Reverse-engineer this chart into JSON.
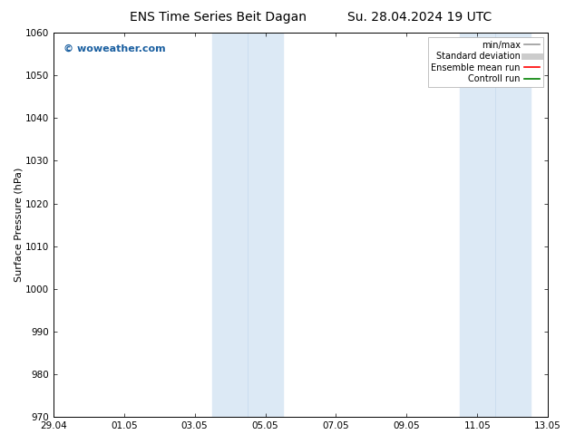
{
  "title_left": "ENS Time Series Beit Dagan",
  "title_right": "Su. 28.04.2024 19 UTC",
  "ylabel": "Surface Pressure (hPa)",
  "ylim": [
    970,
    1060
  ],
  "yticks": [
    970,
    980,
    990,
    1000,
    1010,
    1020,
    1030,
    1040,
    1050,
    1060
  ],
  "xlim_start": 0,
  "xlim_end": 14,
  "xtick_labels": [
    "29.04",
    "01.05",
    "03.05",
    "05.05",
    "07.05",
    "09.05",
    "11.05",
    "13.05"
  ],
  "xtick_positions": [
    0,
    2,
    4,
    6,
    8,
    10,
    12,
    14
  ],
  "shaded_regions": [
    {
      "xmin": 4.5,
      "xmax": 5.5,
      "color": "#dce9f5"
    },
    {
      "xmin": 5.5,
      "xmax": 6.5,
      "color": "#dce9f5"
    },
    {
      "xmin": 11.5,
      "xmax": 12.5,
      "color": "#dce9f5"
    },
    {
      "xmin": 12.5,
      "xmax": 13.5,
      "color": "#dce9f5"
    }
  ],
  "watermark_text": "© woweather.com",
  "watermark_color": "#1a5fa0",
  "background_color": "#ffffff",
  "plot_bg_color": "#ffffff",
  "legend_items": [
    {
      "label": "min/max",
      "color": "#999999",
      "lw": 1.2,
      "style": "solid"
    },
    {
      "label": "Standard deviation",
      "color": "#cccccc",
      "lw": 5,
      "style": "solid"
    },
    {
      "label": "Ensemble mean run",
      "color": "#ff0000",
      "lw": 1.2,
      "style": "solid"
    },
    {
      "label": "Controll run",
      "color": "#008000",
      "lw": 1.2,
      "style": "solid"
    }
  ],
  "title_fontsize": 10,
  "ylabel_fontsize": 8,
  "tick_fontsize": 7.5,
  "watermark_fontsize": 8,
  "legend_fontsize": 7
}
